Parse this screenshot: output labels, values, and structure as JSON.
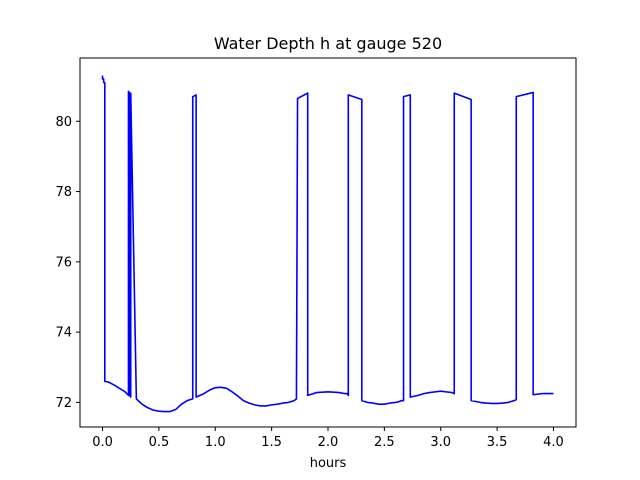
{
  "chart_data": {
    "type": "line",
    "title": "Water Depth h at gauge 520",
    "xlabel": "hours",
    "ylabel": "",
    "xlim": [
      -0.2,
      4.2
    ],
    "ylim": [
      71.3,
      81.8
    ],
    "xticks": [
      0.0,
      0.5,
      1.0,
      1.5,
      2.0,
      2.5,
      3.0,
      3.5,
      4.0
    ],
    "xtick_labels": [
      "0.0",
      "0.5",
      "1.0",
      "1.5",
      "2.0",
      "2.5",
      "3.0",
      "3.5",
      "4.0"
    ],
    "yticks": [
      72,
      74,
      76,
      78,
      80
    ],
    "ytick_labels": [
      "72",
      "74",
      "76",
      "78",
      "80"
    ],
    "grid": false,
    "series": [
      {
        "color": "#0000ff",
        "x": [
          0.0,
          0.0,
          0.01,
          0.01,
          0.02,
          0.02,
          0.05,
          0.1,
          0.15,
          0.2,
          0.23,
          0.23,
          0.24,
          0.24,
          0.25,
          0.25,
          0.3,
          0.35,
          0.4,
          0.45,
          0.5,
          0.55,
          0.6,
          0.65,
          0.7,
          0.75,
          0.8,
          0.8,
          0.83,
          0.83,
          0.9,
          0.95,
          1.0,
          1.05,
          1.1,
          1.15,
          1.2,
          1.25,
          1.3,
          1.35,
          1.4,
          1.45,
          1.5,
          1.55,
          1.6,
          1.65,
          1.7,
          1.72,
          1.73,
          1.82,
          1.82,
          1.9,
          2.0,
          2.1,
          2.15,
          2.17,
          2.18,
          2.18,
          2.3,
          2.3,
          2.35,
          2.4,
          2.45,
          2.5,
          2.55,
          2.6,
          2.63,
          2.65,
          2.67,
          2.67,
          2.73,
          2.73,
          2.8,
          2.85,
          2.9,
          2.95,
          3.0,
          3.05,
          3.1,
          3.12,
          3.12,
          3.27,
          3.27,
          3.35,
          3.4,
          3.45,
          3.5,
          3.55,
          3.6,
          3.65,
          3.67,
          3.67,
          3.82,
          3.82,
          3.9,
          4.0
        ],
        "y": [
          81.3,
          81.2,
          81.2,
          81.1,
          81.1,
          72.6,
          72.58,
          72.5,
          72.4,
          72.3,
          72.2,
          80.85,
          80.8,
          72.2,
          72.15,
          80.8,
          72.1,
          71.95,
          71.85,
          71.78,
          71.75,
          71.74,
          71.74,
          71.8,
          71.95,
          72.05,
          72.1,
          80.7,
          80.75,
          72.15,
          72.25,
          72.35,
          72.42,
          72.43,
          72.4,
          72.3,
          72.18,
          72.05,
          71.98,
          71.93,
          71.9,
          71.9,
          71.93,
          71.95,
          71.98,
          72.0,
          72.05,
          72.1,
          80.65,
          80.8,
          72.2,
          72.28,
          72.3,
          72.28,
          72.25,
          72.25,
          72.2,
          80.75,
          80.62,
          72.05,
          72.0,
          71.98,
          71.95,
          71.95,
          71.98,
          72.0,
          72.02,
          72.05,
          72.05,
          80.7,
          80.75,
          72.15,
          72.2,
          72.25,
          72.28,
          72.3,
          72.32,
          72.3,
          72.28,
          72.25,
          80.8,
          80.62,
          72.05,
          72.0,
          71.98,
          71.97,
          71.97,
          71.98,
          72.0,
          72.05,
          72.08,
          80.7,
          80.82,
          72.22,
          72.25,
          72.25
        ]
      }
    ]
  }
}
